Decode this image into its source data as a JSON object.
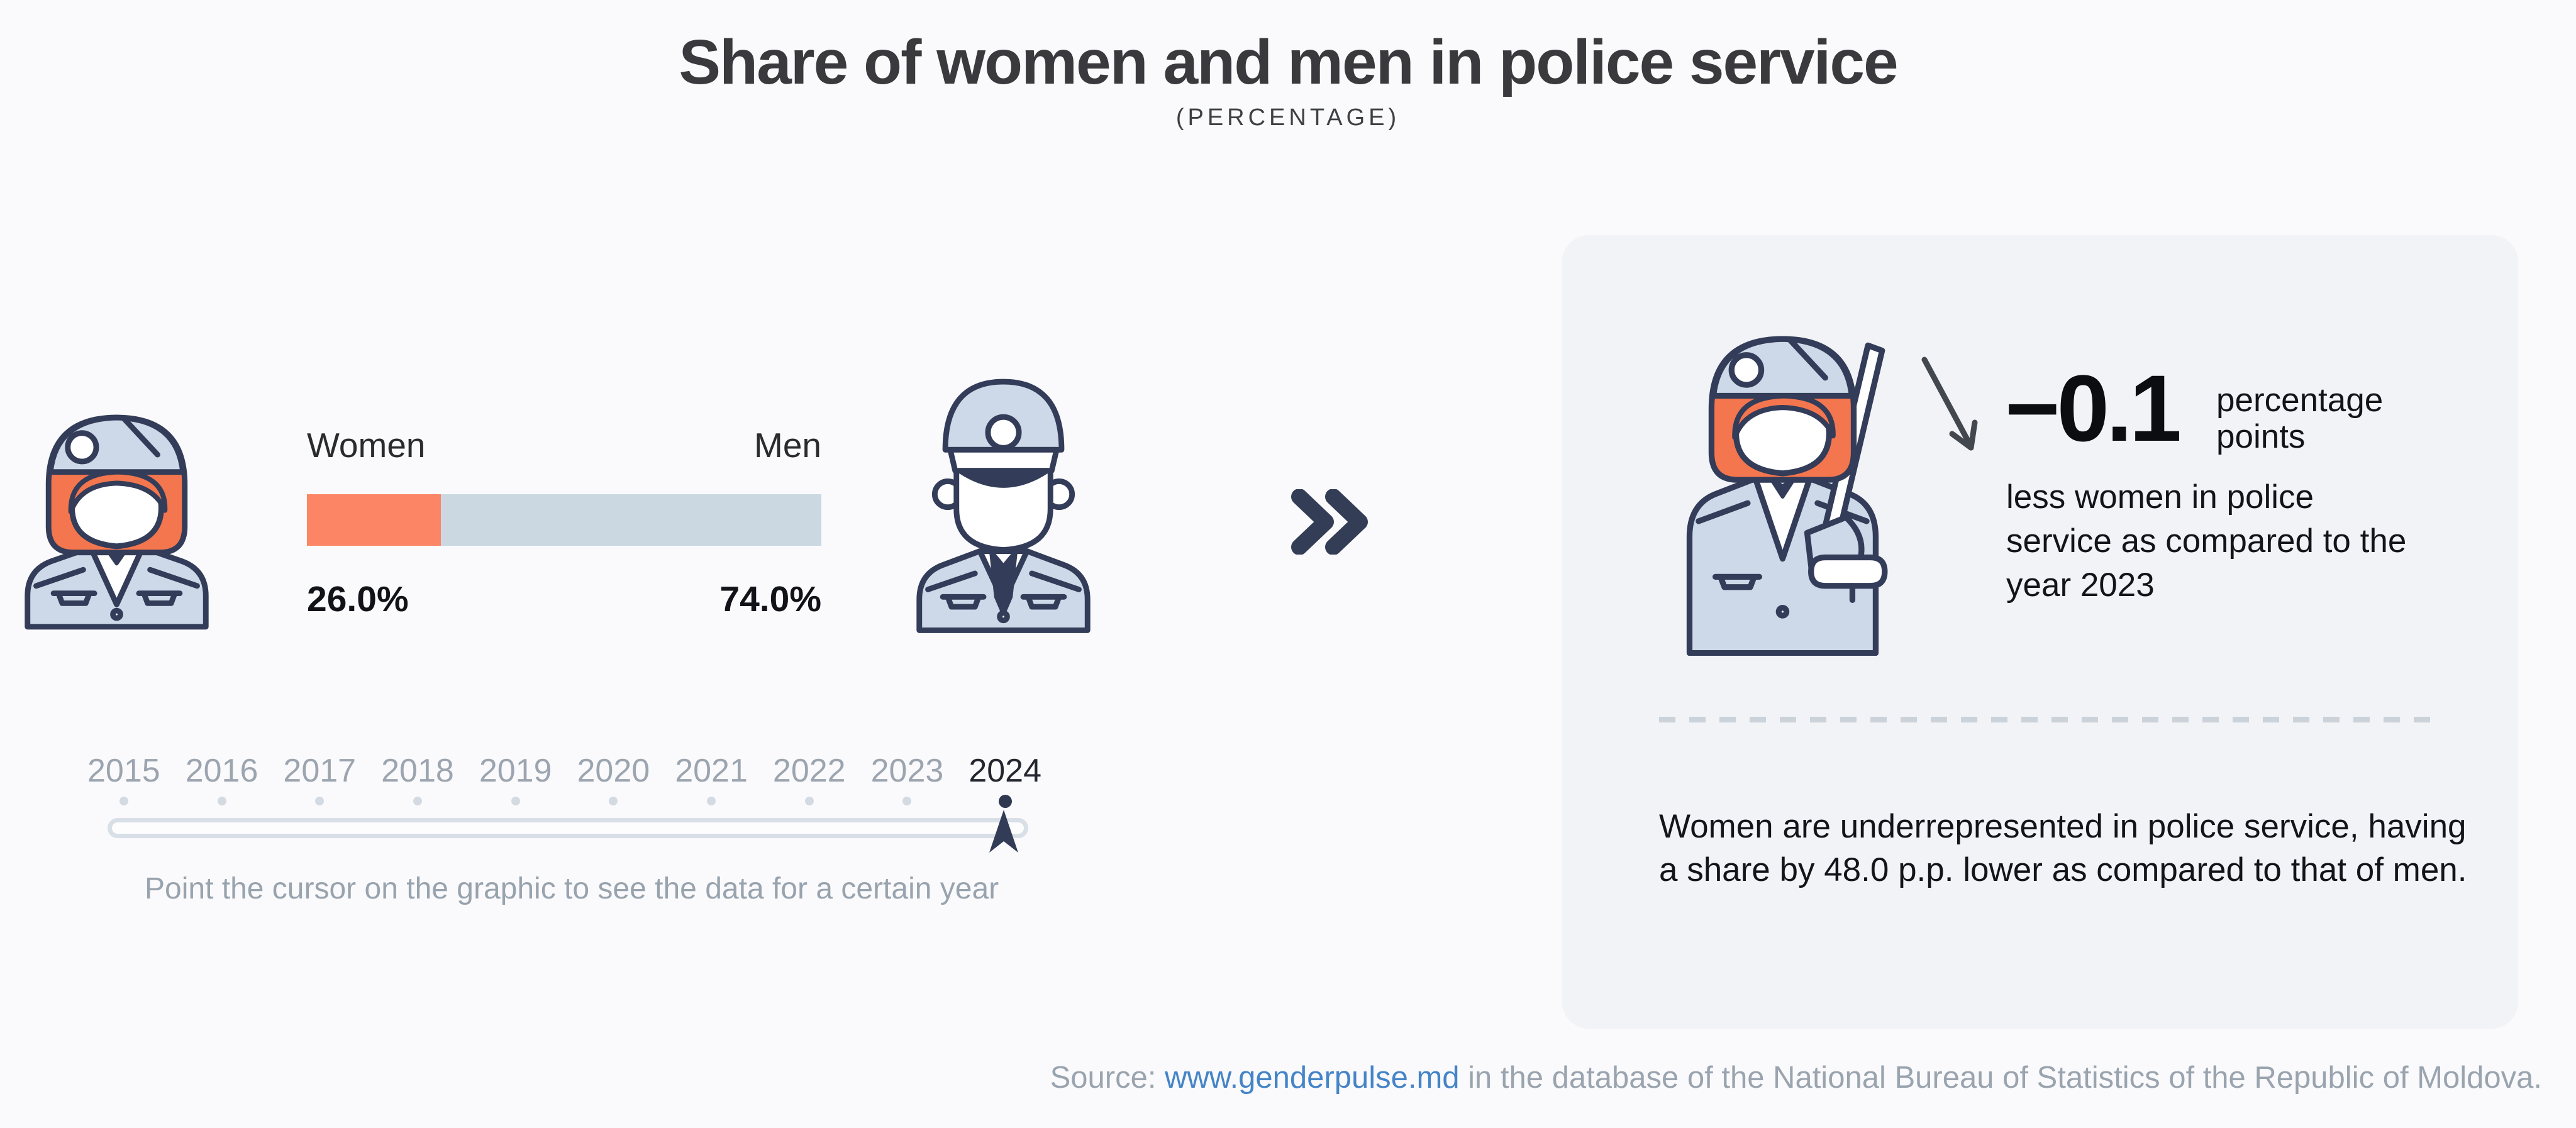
{
  "header": {
    "title": "Share of women and men in police service",
    "subtitle": "(PERCENTAGE)"
  },
  "bar_chart": {
    "left_label": "Women",
    "right_label": "Men",
    "left_value": "26.0%",
    "right_value": "74.0%",
    "left_pct": 26.0,
    "right_pct": 74.0
  },
  "timeline": {
    "years": [
      "2015",
      "2016",
      "2017",
      "2018",
      "2019",
      "2020",
      "2021",
      "2022",
      "2023",
      "2024"
    ],
    "selected_year": "2024",
    "hint": "Point the cursor on the graphic to see the data for a certain year"
  },
  "panel": {
    "delta_value": "−0.1",
    "delta_unit_line1": "percentage",
    "delta_unit_line2": "points",
    "delta_text": "less women in police service as compared to the year 2023",
    "summary": "Women are underrepresented in police service, having a share by 48.0 p.p. lower as compared to that of men."
  },
  "source": {
    "prefix": "Source: ",
    "link": "www.genderpulse.md",
    "suffix": " in the database of the National Bureau of Statistics of the Republic of Moldova."
  },
  "colors": {
    "women": "#FB8565",
    "men": "#CBD7E1",
    "navy_outline": "#333C58",
    "hair_orange": "#F4764E",
    "uniform_blue": "#CDD9E8",
    "link_blue": "#4584C7",
    "panel_bg": "#F1F3F7"
  },
  "chart_data": {
    "type": "bar",
    "title": "Share of women and men in police service",
    "subtitle": "(PERCENTAGE)",
    "orientation": "horizontal",
    "stacked": true,
    "categories": [
      "Women",
      "Men"
    ],
    "values": [
      26.0,
      74.0
    ],
    "unit": "percent",
    "timeline_years": [
      2015,
      2016,
      2017,
      2018,
      2019,
      2020,
      2021,
      2022,
      2023,
      2024
    ],
    "selected_year": 2024,
    "annotations": {
      "change_vs_2023_pp": -0.1,
      "women_minus_men_gap_pp": -48.0
    },
    "series_colors": {
      "Women": "#FB8565",
      "Men": "#CBD7E1"
    },
    "legend_position": "above-bar",
    "grid": false
  }
}
